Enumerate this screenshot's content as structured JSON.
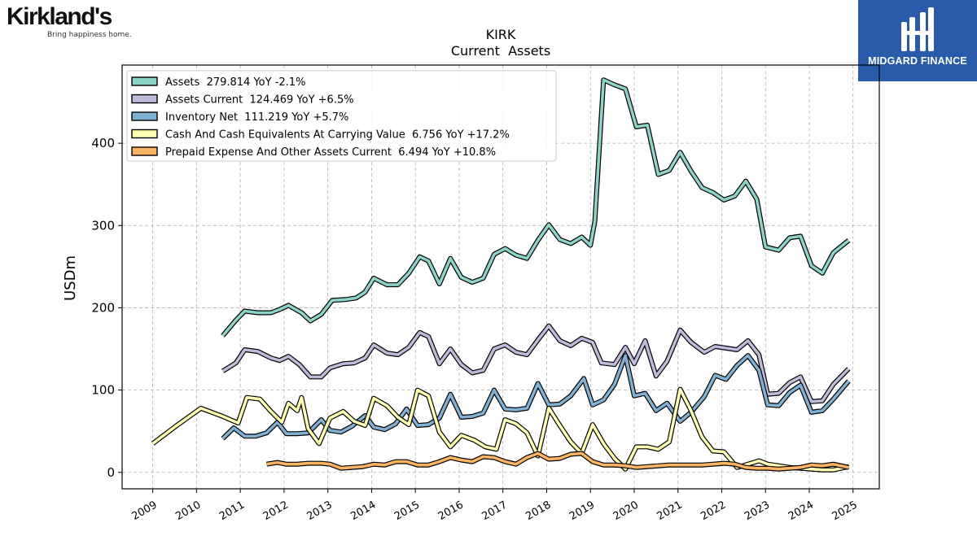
{
  "branding": {
    "company_name": "Kirkland's",
    "company_tagline": "Bring happiness home.",
    "publisher_name": "MIDGARD FINANCE",
    "publisher_bg": "#2a5bab"
  },
  "chart_data": {
    "type": "line",
    "title": "KIRK",
    "subtitle": "Current  Assets",
    "xlabel": "",
    "ylabel": "USDm",
    "xlim": [
      2008.3,
      2025.6
    ],
    "ylim": [
      -20,
      495
    ],
    "yticks": [
      0,
      100,
      200,
      300,
      400
    ],
    "xticks": [
      "2009",
      "2010",
      "2011",
      "2012",
      "2013",
      "2014",
      "2015",
      "2016",
      "2017",
      "2018",
      "2019",
      "2020",
      "2021",
      "2022",
      "2023",
      "2024",
      "2025"
    ],
    "grid": true,
    "legend_position": "top-left",
    "series": [
      {
        "name": "Assets  279.814 YoY -2.1%",
        "color": "#8dd3c7",
        "points": [
          [
            2010.6,
            166
          ],
          [
            2010.9,
            185
          ],
          [
            2011.1,
            196
          ],
          [
            2011.4,
            194
          ],
          [
            2011.7,
            194
          ],
          [
            2011.9,
            198
          ],
          [
            2012.1,
            203
          ],
          [
            2012.4,
            194
          ],
          [
            2012.6,
            184
          ],
          [
            2012.85,
            192
          ],
          [
            2013.1,
            209
          ],
          [
            2013.4,
            210
          ],
          [
            2013.65,
            212
          ],
          [
            2013.85,
            219
          ],
          [
            2014.05,
            236
          ],
          [
            2014.35,
            228
          ],
          [
            2014.6,
            228
          ],
          [
            2014.85,
            242
          ],
          [
            2015.1,
            262
          ],
          [
            2015.3,
            257
          ],
          [
            2015.55,
            229
          ],
          [
            2015.8,
            260
          ],
          [
            2016.05,
            237
          ],
          [
            2016.3,
            231
          ],
          [
            2016.55,
            236
          ],
          [
            2016.8,
            265
          ],
          [
            2017.05,
            272
          ],
          [
            2017.3,
            264
          ],
          [
            2017.55,
            260
          ],
          [
            2017.8,
            282
          ],
          [
            2018.05,
            301
          ],
          [
            2018.3,
            283
          ],
          [
            2018.55,
            278
          ],
          [
            2018.8,
            286
          ],
          [
            2019.0,
            276
          ],
          [
            2019.1,
            305
          ],
          [
            2019.3,
            477
          ],
          [
            2019.55,
            471
          ],
          [
            2019.8,
            466
          ],
          [
            2020.05,
            420
          ],
          [
            2020.3,
            422
          ],
          [
            2020.55,
            362
          ],
          [
            2020.8,
            367
          ],
          [
            2021.05,
            389
          ],
          [
            2021.3,
            366
          ],
          [
            2021.55,
            346
          ],
          [
            2021.8,
            340
          ],
          [
            2022.05,
            331
          ],
          [
            2022.3,
            336
          ],
          [
            2022.55,
            354
          ],
          [
            2022.8,
            332
          ],
          [
            2023.0,
            274
          ],
          [
            2023.3,
            270
          ],
          [
            2023.55,
            285
          ],
          [
            2023.8,
            287
          ],
          [
            2024.05,
            251
          ],
          [
            2024.3,
            242
          ],
          [
            2024.55,
            267
          ],
          [
            2024.9,
            282
          ]
        ]
      },
      {
        "name": "Assets Current  124.469 YoY +6.5%",
        "color": "#bebada",
        "points": [
          [
            2010.6,
            123
          ],
          [
            2010.9,
            133
          ],
          [
            2011.1,
            149
          ],
          [
            2011.4,
            147
          ],
          [
            2011.7,
            139
          ],
          [
            2011.9,
            136
          ],
          [
            2012.1,
            141
          ],
          [
            2012.35,
            131
          ],
          [
            2012.6,
            116
          ],
          [
            2012.85,
            116
          ],
          [
            2013.05,
            127
          ],
          [
            2013.35,
            132
          ],
          [
            2013.6,
            133
          ],
          [
            2013.85,
            139
          ],
          [
            2014.05,
            155
          ],
          [
            2014.35,
            145
          ],
          [
            2014.6,
            143
          ],
          [
            2014.85,
            152
          ],
          [
            2015.1,
            170
          ],
          [
            2015.3,
            165
          ],
          [
            2015.55,
            132
          ],
          [
            2015.8,
            150
          ],
          [
            2016.05,
            131
          ],
          [
            2016.3,
            121
          ],
          [
            2016.55,
            124
          ],
          [
            2016.8,
            150
          ],
          [
            2017.05,
            155
          ],
          [
            2017.3,
            146
          ],
          [
            2017.55,
            143
          ],
          [
            2017.8,
            161
          ],
          [
            2018.05,
            178
          ],
          [
            2018.3,
            160
          ],
          [
            2018.55,
            154
          ],
          [
            2018.8,
            163
          ],
          [
            2019.05,
            158
          ],
          [
            2019.25,
            133
          ],
          [
            2019.55,
            131
          ],
          [
            2019.8,
            152
          ],
          [
            2020.0,
            132
          ],
          [
            2020.25,
            160
          ],
          [
            2020.5,
            117
          ],
          [
            2020.75,
            135
          ],
          [
            2021.05,
            173
          ],
          [
            2021.3,
            158
          ],
          [
            2021.6,
            146
          ],
          [
            2021.85,
            153
          ],
          [
            2022.1,
            151
          ],
          [
            2022.35,
            149
          ],
          [
            2022.6,
            160
          ],
          [
            2022.85,
            143
          ],
          [
            2023.05,
            95
          ],
          [
            2023.3,
            96
          ],
          [
            2023.55,
            109
          ],
          [
            2023.8,
            116
          ],
          [
            2024.05,
            86
          ],
          [
            2024.3,
            87
          ],
          [
            2024.55,
            107
          ],
          [
            2024.9,
            126
          ]
        ]
      },
      {
        "name": "Inventory Net  111.219 YoY +5.7%",
        "color": "#80b1d3",
        "points": [
          [
            2010.6,
            41
          ],
          [
            2010.85,
            54
          ],
          [
            2011.1,
            44
          ],
          [
            2011.35,
            44
          ],
          [
            2011.6,
            48
          ],
          [
            2011.85,
            61
          ],
          [
            2012.05,
            47
          ],
          [
            2012.3,
            47
          ],
          [
            2012.55,
            48
          ],
          [
            2012.85,
            64
          ],
          [
            2013.05,
            51
          ],
          [
            2013.3,
            49
          ],
          [
            2013.55,
            56
          ],
          [
            2013.85,
            69
          ],
          [
            2014.05,
            55
          ],
          [
            2014.3,
            52
          ],
          [
            2014.55,
            59
          ],
          [
            2014.8,
            77
          ],
          [
            2015.05,
            57
          ],
          [
            2015.3,
            58
          ],
          [
            2015.55,
            66
          ],
          [
            2015.8,
            95
          ],
          [
            2016.05,
            67
          ],
          [
            2016.3,
            68
          ],
          [
            2016.55,
            72
          ],
          [
            2016.8,
            100
          ],
          [
            2017.05,
            77
          ],
          [
            2017.3,
            76
          ],
          [
            2017.55,
            78
          ],
          [
            2017.8,
            108
          ],
          [
            2018.05,
            82
          ],
          [
            2018.3,
            83
          ],
          [
            2018.55,
            93
          ],
          [
            2018.85,
            114
          ],
          [
            2019.05,
            82
          ],
          [
            2019.3,
            88
          ],
          [
            2019.55,
            107
          ],
          [
            2019.8,
            142
          ],
          [
            2020.0,
            93
          ],
          [
            2020.25,
            96
          ],
          [
            2020.5,
            75
          ],
          [
            2020.75,
            84
          ],
          [
            2021.05,
            62
          ],
          [
            2021.3,
            73
          ],
          [
            2021.6,
            92
          ],
          [
            2021.85,
            118
          ],
          [
            2022.1,
            113
          ],
          [
            2022.35,
            130
          ],
          [
            2022.6,
            142
          ],
          [
            2022.85,
            124
          ],
          [
            2023.05,
            82
          ],
          [
            2023.3,
            81
          ],
          [
            2023.55,
            97
          ],
          [
            2023.8,
            106
          ],
          [
            2024.05,
            73
          ],
          [
            2024.3,
            75
          ],
          [
            2024.55,
            89
          ],
          [
            2024.9,
            111
          ]
        ]
      },
      {
        "name": "Cash And Cash Equivalents At Carrying Value  6.756 YoY +17.2%",
        "color": "#ffffb3",
        "points": [
          [
            2009.0,
            35
          ],
          [
            2009.55,
            57
          ],
          [
            2010.1,
            78
          ],
          [
            2010.6,
            68
          ],
          [
            2010.95,
            60
          ],
          [
            2011.15,
            91
          ],
          [
            2011.45,
            89
          ],
          [
            2011.7,
            74
          ],
          [
            2011.95,
            61
          ],
          [
            2012.1,
            84
          ],
          [
            2012.3,
            75
          ],
          [
            2012.4,
            91
          ],
          [
            2012.55,
            53
          ],
          [
            2012.8,
            35
          ],
          [
            2013.05,
            66
          ],
          [
            2013.35,
            74
          ],
          [
            2013.6,
            62
          ],
          [
            2013.85,
            57
          ],
          [
            2014.05,
            90
          ],
          [
            2014.35,
            81
          ],
          [
            2014.6,
            67
          ],
          [
            2014.85,
            58
          ],
          [
            2015.05,
            100
          ],
          [
            2015.3,
            93
          ],
          [
            2015.55,
            49
          ],
          [
            2015.8,
            31
          ],
          [
            2016.05,
            45
          ],
          [
            2016.35,
            39
          ],
          [
            2016.6,
            31
          ],
          [
            2016.85,
            28
          ],
          [
            2017.05,
            64
          ],
          [
            2017.3,
            59
          ],
          [
            2017.55,
            48
          ],
          [
            2017.8,
            20
          ],
          [
            2018.05,
            78
          ],
          [
            2018.3,
            57
          ],
          [
            2018.55,
            37
          ],
          [
            2018.8,
            23
          ],
          [
            2019.05,
            58
          ],
          [
            2019.3,
            35
          ],
          [
            2019.55,
            17
          ],
          [
            2019.8,
            4
          ],
          [
            2020.05,
            31
          ],
          [
            2020.3,
            31
          ],
          [
            2020.55,
            28
          ],
          [
            2020.8,
            37
          ],
          [
            2021.05,
            101
          ],
          [
            2021.3,
            75
          ],
          [
            2021.55,
            43
          ],
          [
            2021.8,
            26
          ],
          [
            2022.05,
            25
          ],
          [
            2022.35,
            6
          ],
          [
            2022.6,
            10
          ],
          [
            2022.85,
            14
          ],
          [
            2023.05,
            10
          ],
          [
            2023.3,
            8
          ],
          [
            2023.55,
            6
          ],
          [
            2023.8,
            5
          ],
          [
            2024.05,
            4
          ],
          [
            2024.3,
            3
          ],
          [
            2024.55,
            3
          ],
          [
            2024.9,
            7
          ]
        ]
      },
      {
        "name": "Prepaid Expense And Other Assets Current  6.494 YoY +10.8%",
        "color": "#fdb462",
        "points": [
          [
            2011.6,
            10
          ],
          [
            2011.85,
            12
          ],
          [
            2012.05,
            10
          ],
          [
            2012.3,
            10
          ],
          [
            2012.55,
            11
          ],
          [
            2012.85,
            11
          ],
          [
            2013.05,
            10
          ],
          [
            2013.3,
            5
          ],
          [
            2013.55,
            6
          ],
          [
            2013.8,
            7
          ],
          [
            2014.05,
            10
          ],
          [
            2014.3,
            9
          ],
          [
            2014.55,
            13
          ],
          [
            2014.8,
            13
          ],
          [
            2015.05,
            9
          ],
          [
            2015.3,
            9
          ],
          [
            2015.55,
            13
          ],
          [
            2015.8,
            18
          ],
          [
            2016.05,
            15
          ],
          [
            2016.3,
            13
          ],
          [
            2016.55,
            19
          ],
          [
            2016.8,
            18
          ],
          [
            2017.05,
            13
          ],
          [
            2017.3,
            10
          ],
          [
            2017.55,
            18
          ],
          [
            2017.8,
            23
          ],
          [
            2018.05,
            16
          ],
          [
            2018.3,
            17
          ],
          [
            2018.55,
            22
          ],
          [
            2018.8,
            23
          ],
          [
            2019.05,
            13
          ],
          [
            2019.3,
            9
          ],
          [
            2019.55,
            9
          ],
          [
            2019.8,
            8
          ],
          [
            2020.05,
            6
          ],
          [
            2020.3,
            7
          ],
          [
            2020.55,
            8
          ],
          [
            2020.8,
            9
          ],
          [
            2021.05,
            9
          ],
          [
            2021.3,
            9
          ],
          [
            2021.55,
            9
          ],
          [
            2021.8,
            10
          ],
          [
            2022.05,
            11
          ],
          [
            2022.3,
            10
          ],
          [
            2022.55,
            6
          ],
          [
            2022.8,
            5
          ],
          [
            2023.05,
            5
          ],
          [
            2023.3,
            4
          ],
          [
            2023.55,
            5
          ],
          [
            2023.8,
            6
          ],
          [
            2024.05,
            9
          ],
          [
            2024.3,
            8
          ],
          [
            2024.55,
            10
          ],
          [
            2024.9,
            6
          ]
        ]
      }
    ]
  }
}
